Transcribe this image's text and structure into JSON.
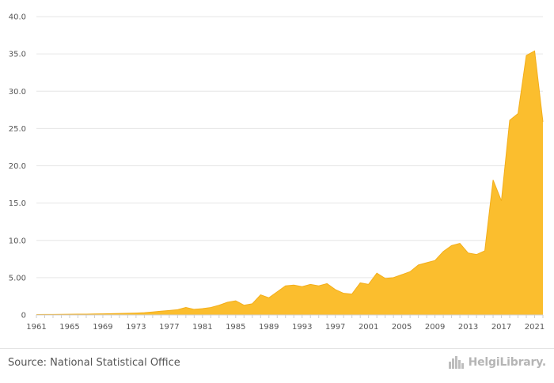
{
  "chart_data": {
    "type": "area",
    "title": "",
    "xlabel": "",
    "ylabel": "",
    "x": [
      1961,
      1962,
      1963,
      1964,
      1965,
      1966,
      1967,
      1968,
      1969,
      1970,
      1971,
      1972,
      1973,
      1974,
      1975,
      1976,
      1977,
      1978,
      1979,
      1980,
      1981,
      1982,
      1983,
      1984,
      1985,
      1986,
      1987,
      1988,
      1989,
      1990,
      1991,
      1992,
      1993,
      1994,
      1995,
      1996,
      1997,
      1998,
      1999,
      2000,
      2001,
      2002,
      2003,
      2004,
      2005,
      2006,
      2007,
      2008,
      2009,
      2010,
      2011,
      2012,
      2013,
      2014,
      2015,
      2016,
      2017,
      2018,
      2019,
      2020,
      2021,
      2022
    ],
    "values": [
      0.05,
      0.06,
      0.07,
      0.08,
      0.09,
      0.1,
      0.11,
      0.13,
      0.15,
      0.17,
      0.2,
      0.22,
      0.25,
      0.3,
      0.4,
      0.5,
      0.6,
      0.7,
      1.0,
      0.75,
      0.85,
      1.0,
      1.3,
      1.7,
      1.9,
      1.3,
      1.5,
      2.7,
      2.3,
      3.1,
      3.9,
      4.0,
      3.8,
      4.1,
      3.9,
      4.2,
      3.4,
      2.9,
      2.8,
      4.3,
      4.1,
      5.6,
      4.9,
      5.0,
      5.4,
      5.8,
      6.7,
      7.0,
      7.3,
      8.5,
      9.3,
      9.6,
      8.3,
      8.1,
      8.6,
      18.1,
      15.3,
      26.1,
      27.0,
      34.8,
      35.4,
      25.9
    ],
    "xticks": [
      "1961",
      "1965",
      "1969",
      "1973",
      "1977",
      "1981",
      "1985",
      "1989",
      "1993",
      "1997",
      "2001",
      "2005",
      "2009",
      "2013",
      "2017",
      "2021"
    ],
    "yticks": [
      "0",
      "5.00",
      "10.0",
      "15.0",
      "20.0",
      "25.0",
      "30.0",
      "35.0",
      "40.0"
    ],
    "ylim": [
      0,
      40
    ],
    "xlim": [
      1961,
      2022
    ],
    "grid": true,
    "colors": {
      "fill": "#fbbe2e",
      "stroke": "#f3ae1a",
      "grid": "#e6e6e6",
      "axis": "#cfcfcf"
    }
  },
  "footer": {
    "source": "Source: National Statistical Office",
    "logo_text": "HelgiLibrary.",
    "logo_icon": "city-skyline-icon"
  }
}
